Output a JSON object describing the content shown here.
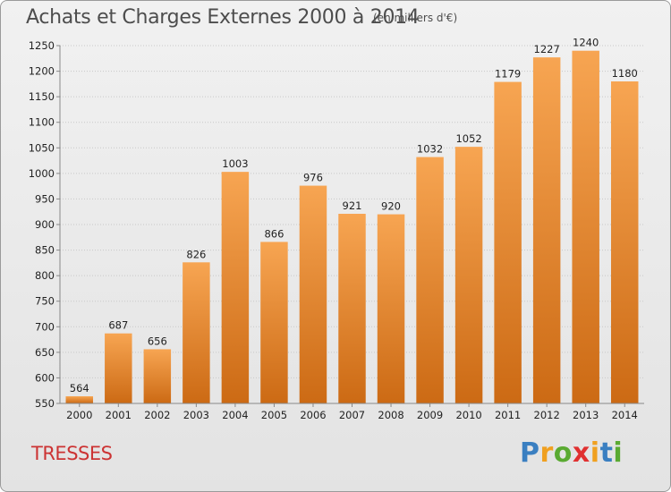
{
  "title": "Achats et Charges Externes 2000 à 2014",
  "subtitle": "(en milliers d'€)",
  "place": "TRESSES",
  "logo": {
    "letters": [
      {
        "ch": "P",
        "color": "#3a7fc1"
      },
      {
        "ch": "r",
        "color": "#f0a020"
      },
      {
        "ch": "o",
        "color": "#5aaa32"
      },
      {
        "ch": "x",
        "color": "#e03030"
      },
      {
        "ch": "i",
        "color": "#f0a020"
      },
      {
        "ch": "t",
        "color": "#3a7fc1"
      },
      {
        "ch": "i",
        "color": "#5aaa32"
      }
    ]
  },
  "chart_data": {
    "type": "bar",
    "title": "Achats et Charges Externes 2000 à 2014",
    "subtitle": "(en milliers d'€)",
    "categories": [
      "2000",
      "2001",
      "2002",
      "2003",
      "2004",
      "2005",
      "2006",
      "2007",
      "2008",
      "2009",
      "2010",
      "2011",
      "2012",
      "2013",
      "2014"
    ],
    "values": [
      564,
      687,
      656,
      826,
      1003,
      866,
      976,
      921,
      920,
      1032,
      1052,
      1179,
      1227,
      1240,
      1180
    ],
    "ylim": [
      550,
      1250
    ],
    "yticks": [
      550,
      600,
      650,
      700,
      750,
      800,
      850,
      900,
      950,
      1000,
      1050,
      1100,
      1150,
      1200,
      1250
    ],
    "grid": true,
    "bar_color_top": "#f7a552",
    "bar_color_bottom": "#cc6a14"
  }
}
